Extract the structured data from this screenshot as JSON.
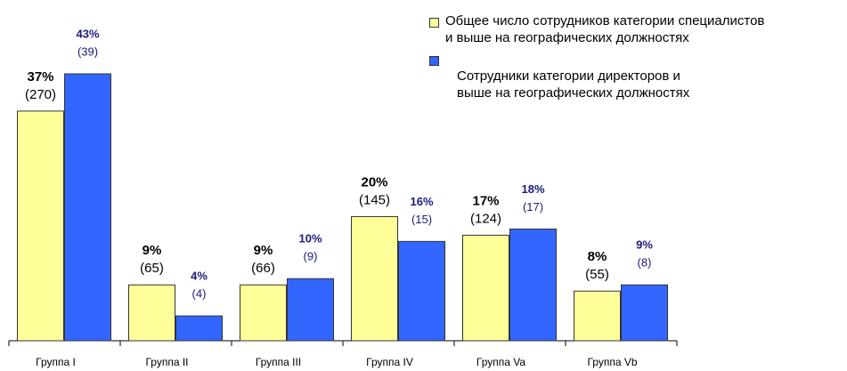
{
  "chart_data": {
    "type": "bar",
    "categories": [
      "Группа I",
      "Группа II",
      "Группа III",
      "Группа IV",
      "Группа Va",
      "Группа Vb"
    ],
    "series": [
      {
        "name": "Общее число сотрудников категории специалистов\n и выше на географических должностях",
        "color": "#ffff99",
        "values": [
          37,
          9,
          9,
          20,
          17,
          8
        ],
        "value_labels": [
          "37%",
          "9%",
          "9%",
          "20%",
          "17%",
          "8%"
        ],
        "count_labels": [
          "(270)",
          "(65)",
          "(66)",
          "(145)",
          "(124)",
          "(55)"
        ]
      },
      {
        "name": "Сотрудники категории директоров и\nвыше на географических должностях",
        "color": "#3366ff",
        "values": [
          43,
          4,
          10,
          16,
          18,
          9
        ],
        "value_labels": [
          "43%",
          "4%",
          "10%",
          "16%",
          "18%",
          "9%"
        ],
        "count_labels": [
          "(39)",
          "(4)",
          "(9)",
          "(15)",
          "(17)",
          "(8)"
        ]
      }
    ]
  }
}
